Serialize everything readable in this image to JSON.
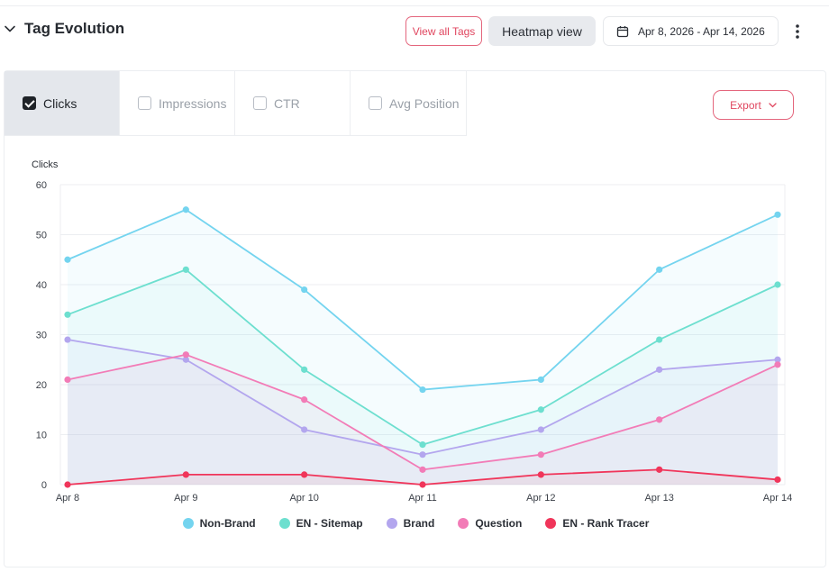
{
  "header": {
    "title": "Tag Evolution",
    "view_tags_label": "View all Tags",
    "heatmap_label": "Heatmap view",
    "date_range": "Apr 8, 2026 - Apr 14, 2026"
  },
  "tabs": [
    {
      "label": "Clicks",
      "checked": true
    },
    {
      "label": "Impressions",
      "checked": false
    },
    {
      "label": "CTR",
      "checked": false
    },
    {
      "label": "Avg Position",
      "checked": false
    }
  ],
  "export_label": "Export",
  "chart_data": {
    "type": "area",
    "ylabel": "Clicks",
    "xlabel": "",
    "title": "",
    "x": [
      "Apr 8",
      "Apr 9",
      "Apr 10",
      "Apr 11",
      "Apr 12",
      "Apr 13",
      "Apr 14"
    ],
    "ylim": [
      0,
      60
    ],
    "yticks": [
      0,
      10,
      20,
      30,
      40,
      50,
      60
    ],
    "grid": true,
    "legend_position": "bottom",
    "series": [
      {
        "name": "Non-Brand",
        "color": "#74d4ef",
        "values": [
          45,
          55,
          39,
          19,
          21,
          43,
          54
        ]
      },
      {
        "name": "EN - Sitemap",
        "color": "#6ddfcf",
        "values": [
          34,
          43,
          23,
          8,
          15,
          29,
          40
        ]
      },
      {
        "name": "Brand",
        "color": "#b3a6ee",
        "values": [
          29,
          25,
          11,
          6,
          11,
          23,
          25
        ]
      },
      {
        "name": "Question",
        "color": "#f27cb7",
        "values": [
          21,
          26,
          17,
          3,
          6,
          13,
          24
        ]
      },
      {
        "name": "EN - Rank Tracer",
        "color": "#f0355a",
        "values": [
          0,
          2,
          2,
          0,
          2,
          3,
          1
        ]
      }
    ]
  }
}
